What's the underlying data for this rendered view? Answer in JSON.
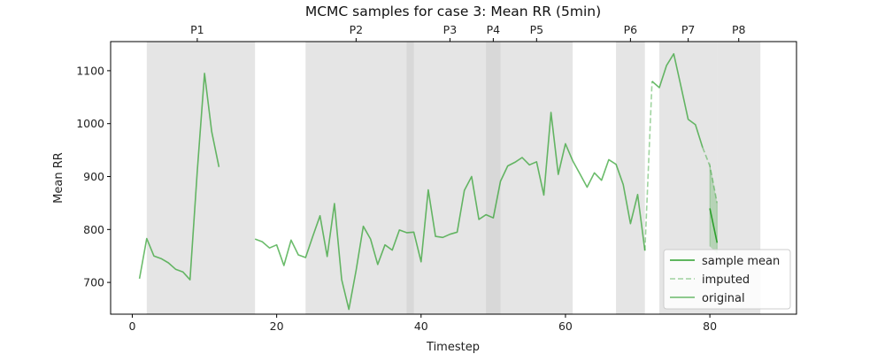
{
  "chart_data": {
    "type": "line",
    "title": "MCMC samples for case 3: Mean RR (5min)",
    "xlabel": "Timestep",
    "ylabel": "Mean RR",
    "xlim": [
      -3,
      92
    ],
    "ylim": [
      640,
      1155
    ],
    "x_ticks": [
      0,
      20,
      40,
      60,
      80
    ],
    "y_ticks": [
      700,
      800,
      900,
      1000,
      1100
    ],
    "grid": false,
    "legend_position": "bottom-right",
    "colors": {
      "line": "#2ca02c",
      "band": "#cccccc",
      "band_dark": "#a6a6a6"
    },
    "phases": [
      {
        "label": "P1",
        "start": 2,
        "end": 17
      },
      {
        "label": "P2",
        "start": 24,
        "end": 39
      },
      {
        "label": "P3",
        "start": 38,
        "end": 51
      },
      {
        "label": "P4",
        "start": 49,
        "end": 51
      },
      {
        "label": "P5",
        "start": 51,
        "end": 61
      },
      {
        "label": "P6",
        "start": 67,
        "end": 71
      },
      {
        "label": "P7",
        "start": 73,
        "end": 81
      },
      {
        "label": "P8",
        "start": 81,
        "end": 87
      }
    ],
    "phase_label_x": {
      "P1": 9,
      "P2": 31,
      "P3": 44,
      "P4": 50,
      "P5": 56,
      "P6": 69,
      "P7": 77,
      "P8": 84
    },
    "series": [
      {
        "name": "original",
        "segments": [
          [
            [
              1,
              707
            ],
            [
              2,
              783
            ],
            [
              3,
              750
            ],
            [
              4,
              745
            ],
            [
              5,
              737
            ],
            [
              6,
              725
            ],
            [
              7,
              720
            ],
            [
              8,
              705
            ],
            [
              9,
              910
            ],
            [
              10,
              1095
            ],
            [
              11,
              985
            ],
            [
              12,
              918
            ]
          ],
          [
            [
              17,
              782
            ],
            [
              18,
              777
            ],
            [
              19,
              765
            ],
            [
              20,
              771
            ],
            [
              21,
              732
            ],
            [
              22,
              780
            ],
            [
              23,
              752
            ],
            [
              24,
              747
            ],
            [
              25,
              787
            ],
            [
              26,
              826
            ],
            [
              27,
              749
            ],
            [
              28,
              849
            ],
            [
              29,
              705
            ],
            [
              30,
              649
            ],
            [
              31,
              723
            ],
            [
              32,
              806
            ],
            [
              33,
              782
            ],
            [
              34,
              734
            ],
            [
              35,
              771
            ],
            [
              36,
              761
            ],
            [
              37,
              799
            ],
            [
              38,
              794
            ],
            [
              39,
              795
            ],
            [
              40,
              739
            ],
            [
              41,
              875
            ],
            [
              42,
              787
            ],
            [
              43,
              785
            ],
            [
              44,
              791
            ],
            [
              45,
              795
            ],
            [
              46,
              874
            ],
            [
              47,
              900
            ],
            [
              48,
              819
            ],
            [
              49,
              828
            ],
            [
              50,
              822
            ],
            [
              51,
              891
            ],
            [
              52,
              920
            ],
            [
              53,
              927
            ],
            [
              54,
              936
            ],
            [
              55,
              922
            ],
            [
              56,
              928
            ],
            [
              57,
              865
            ],
            [
              58,
              1021
            ],
            [
              59,
              904
            ],
            [
              60,
              962
            ],
            [
              61,
              930
            ],
            [
              62,
              905
            ],
            [
              63,
              880
            ],
            [
              64,
              907
            ],
            [
              65,
              893
            ],
            [
              66,
              932
            ],
            [
              67,
              923
            ],
            [
              68,
              885
            ],
            [
              69,
              811
            ],
            [
              70,
              866
            ],
            [
              71,
              760
            ]
          ],
          [
            [
              72,
              1080
            ],
            [
              73,
              1068
            ],
            [
              74,
              1110
            ],
            [
              75,
              1132
            ],
            [
              76,
              1070
            ],
            [
              77,
              1008
            ],
            [
              78,
              998
            ],
            [
              79,
              955
            ]
          ]
        ]
      },
      {
        "name": "imputed",
        "segments": [
          [
            [
              71,
              760
            ],
            [
              72,
              1080
            ]
          ],
          [
            [
              79,
              955
            ],
            [
              80,
              920
            ],
            [
              81,
              850
            ]
          ]
        ]
      },
      {
        "name": "sample mean",
        "segments": [
          [
            [
              80,
              840
            ],
            [
              81,
              775
            ]
          ]
        ]
      }
    ],
    "sample_spread": [
      {
        "x": 80,
        "low": 768,
        "high": 925
      },
      {
        "x": 81,
        "low": 755,
        "high": 850
      }
    ]
  }
}
